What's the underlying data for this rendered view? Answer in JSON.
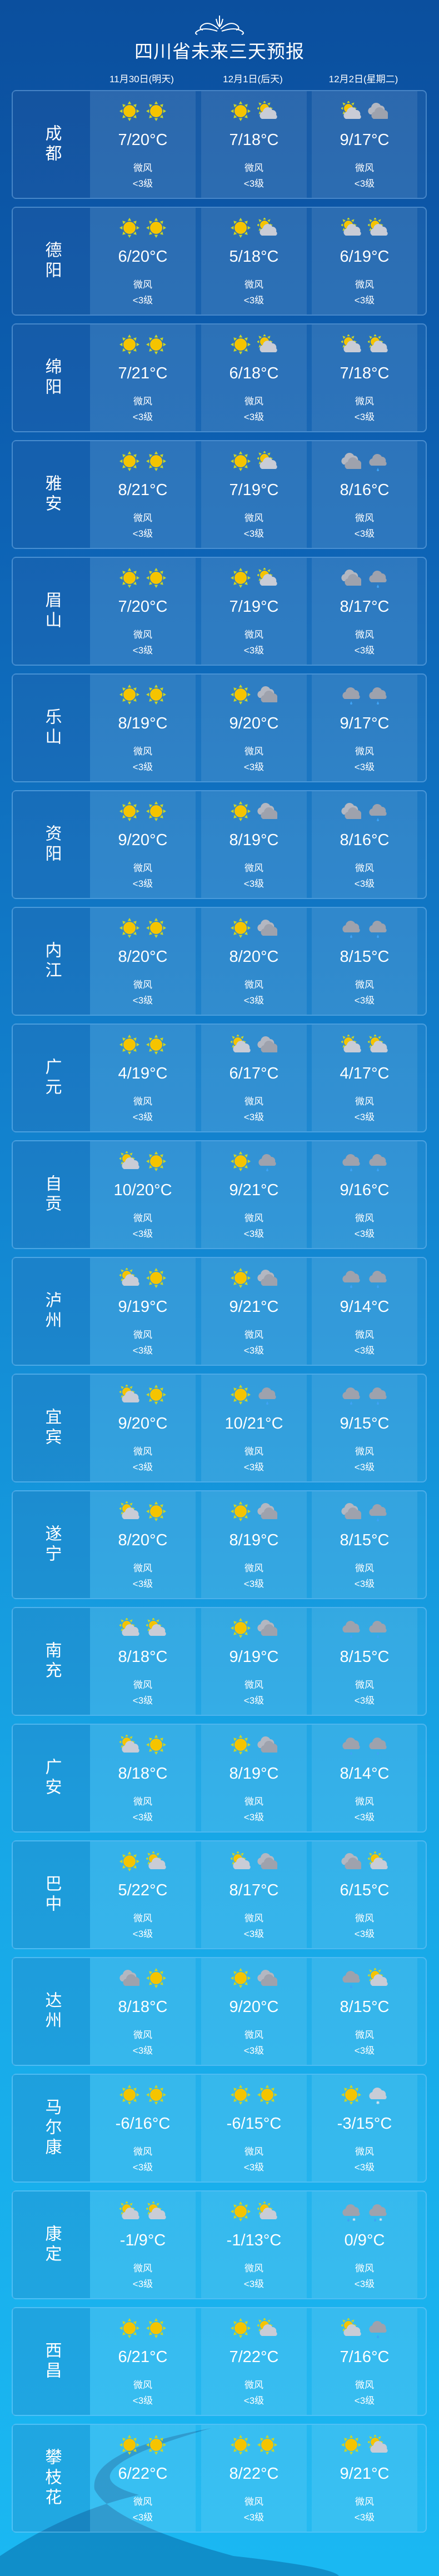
{
  "title": "四川省未来三天预报",
  "dates": [
    "11月30日(明天)",
    "12月1日(后天)",
    "12月2日(星期二)"
  ],
  "wind_label": "微风",
  "wind_level": "<3级",
  "colors": {
    "sun": "#f5c400",
    "cloud": "#c9ccd6",
    "dark_cloud": "#9ea2ad",
    "drop": "#3fa3f5"
  },
  "icon_legend": {
    "sun": "sun-icon",
    "partly": "sun-behind-cloud-icon",
    "overcast": "overcast-clouds-icon",
    "rain": "rain-cloud-icon",
    "snow": "snow-cloud-icon",
    "sleet": "sleet-cloud-icon"
  },
  "cities": [
    {
      "name": "成都",
      "days": [
        {
          "icons": [
            "sun",
            "sun"
          ],
          "temp": "7/20°C"
        },
        {
          "icons": [
            "sun",
            "partly"
          ],
          "temp": "7/18°C"
        },
        {
          "icons": [
            "partly",
            "overcast"
          ],
          "temp": "9/17°C"
        }
      ]
    },
    {
      "name": "德阳",
      "days": [
        {
          "icons": [
            "sun",
            "sun"
          ],
          "temp": "6/20°C"
        },
        {
          "icons": [
            "sun",
            "partly"
          ],
          "temp": "5/18°C"
        },
        {
          "icons": [
            "partly",
            "partly"
          ],
          "temp": "6/19°C"
        }
      ]
    },
    {
      "name": "绵阳",
      "days": [
        {
          "icons": [
            "sun",
            "sun"
          ],
          "temp": "7/21°C"
        },
        {
          "icons": [
            "sun",
            "partly"
          ],
          "temp": "6/18°C"
        },
        {
          "icons": [
            "partly",
            "partly"
          ],
          "temp": "7/18°C"
        }
      ]
    },
    {
      "name": "雅安",
      "days": [
        {
          "icons": [
            "sun",
            "sun"
          ],
          "temp": "8/21°C"
        },
        {
          "icons": [
            "sun",
            "partly"
          ],
          "temp": "7/19°C"
        },
        {
          "icons": [
            "overcast",
            "rain"
          ],
          "temp": "8/16°C"
        }
      ]
    },
    {
      "name": "眉山",
      "days": [
        {
          "icons": [
            "sun",
            "sun"
          ],
          "temp": "7/20°C"
        },
        {
          "icons": [
            "sun",
            "partly"
          ],
          "temp": "7/19°C"
        },
        {
          "icons": [
            "overcast",
            "rain"
          ],
          "temp": "8/17°C"
        }
      ]
    },
    {
      "name": "乐山",
      "days": [
        {
          "icons": [
            "sun",
            "sun"
          ],
          "temp": "8/19°C"
        },
        {
          "icons": [
            "sun",
            "overcast"
          ],
          "temp": "9/20°C"
        },
        {
          "icons": [
            "rain",
            "rain"
          ],
          "temp": "9/17°C"
        }
      ]
    },
    {
      "name": "资阳",
      "days": [
        {
          "icons": [
            "sun",
            "sun"
          ],
          "temp": "9/20°C"
        },
        {
          "icons": [
            "sun",
            "overcast"
          ],
          "temp": "8/19°C"
        },
        {
          "icons": [
            "overcast",
            "rain"
          ],
          "temp": "8/16°C"
        }
      ]
    },
    {
      "name": "内江",
      "days": [
        {
          "icons": [
            "sun",
            "sun"
          ],
          "temp": "8/20°C"
        },
        {
          "icons": [
            "sun",
            "overcast"
          ],
          "temp": "8/20°C"
        },
        {
          "icons": [
            "rain",
            "rain"
          ],
          "temp": "8/15°C"
        }
      ]
    },
    {
      "name": "广元",
      "days": [
        {
          "icons": [
            "sun",
            "sun"
          ],
          "temp": "4/19°C"
        },
        {
          "icons": [
            "partly",
            "overcast"
          ],
          "temp": "6/17°C"
        },
        {
          "icons": [
            "partly",
            "partly"
          ],
          "temp": "4/17°C"
        }
      ]
    },
    {
      "name": "自贡",
      "days": [
        {
          "icons": [
            "partly",
            "sun"
          ],
          "temp": "10/20°C"
        },
        {
          "icons": [
            "sun",
            "rain"
          ],
          "temp": "9/21°C"
        },
        {
          "icons": [
            "rain",
            "rain"
          ],
          "temp": "9/16°C"
        }
      ]
    },
    {
      "name": "泸州",
      "days": [
        {
          "icons": [
            "partly",
            "sun"
          ],
          "temp": "9/19°C"
        },
        {
          "icons": [
            "sun",
            "overcast"
          ],
          "temp": "9/21°C"
        },
        {
          "icons": [
            "rain",
            "rain"
          ],
          "temp": "9/14°C"
        }
      ]
    },
    {
      "name": "宜宾",
      "days": [
        {
          "icons": [
            "partly",
            "sun"
          ],
          "temp": "9/20°C"
        },
        {
          "icons": [
            "sun",
            "rain"
          ],
          "temp": "10/21°C"
        },
        {
          "icons": [
            "rain",
            "rain"
          ],
          "temp": "9/15°C"
        }
      ]
    },
    {
      "name": "遂宁",
      "days": [
        {
          "icons": [
            "partly",
            "sun"
          ],
          "temp": "8/20°C"
        },
        {
          "icons": [
            "sun",
            "overcast"
          ],
          "temp": "8/19°C"
        },
        {
          "icons": [
            "overcast",
            "rain"
          ],
          "temp": "8/15°C"
        }
      ]
    },
    {
      "name": "南充",
      "days": [
        {
          "icons": [
            "partly",
            "partly"
          ],
          "temp": "8/18°C"
        },
        {
          "icons": [
            "sun",
            "overcast"
          ],
          "temp": "9/19°C"
        },
        {
          "icons": [
            "rain",
            "rain"
          ],
          "temp": "8/15°C"
        }
      ]
    },
    {
      "name": "广安",
      "days": [
        {
          "icons": [
            "partly",
            "sun"
          ],
          "temp": "8/18°C"
        },
        {
          "icons": [
            "sun",
            "overcast"
          ],
          "temp": "8/19°C"
        },
        {
          "icons": [
            "rain",
            "rain"
          ],
          "temp": "8/14°C"
        }
      ]
    },
    {
      "name": "巴中",
      "days": [
        {
          "icons": [
            "sun",
            "partly"
          ],
          "temp": "5/22°C"
        },
        {
          "icons": [
            "partly",
            "overcast"
          ],
          "temp": "8/17°C"
        },
        {
          "icons": [
            "overcast",
            "partly"
          ],
          "temp": "6/15°C"
        }
      ]
    },
    {
      "name": "达州",
      "days": [
        {
          "icons": [
            "overcast",
            "sun"
          ],
          "temp": "8/18°C"
        },
        {
          "icons": [
            "sun",
            "overcast"
          ],
          "temp": "9/20°C"
        },
        {
          "icons": [
            "rain",
            "partly"
          ],
          "temp": "8/15°C"
        }
      ]
    },
    {
      "name": "马尔康",
      "days": [
        {
          "icons": [
            "sun",
            "sun"
          ],
          "temp": "-6/16°C"
        },
        {
          "icons": [
            "sun",
            "sun"
          ],
          "temp": "-6/15°C"
        },
        {
          "icons": [
            "sun",
            "snow"
          ],
          "temp": "-3/15°C"
        }
      ]
    },
    {
      "name": "康定",
      "days": [
        {
          "icons": [
            "partly",
            "partly"
          ],
          "temp": "-1/9°C"
        },
        {
          "icons": [
            "sun",
            "partly"
          ],
          "temp": "-1/13°C"
        },
        {
          "icons": [
            "sleet",
            "sleet"
          ],
          "temp": "0/9°C"
        }
      ]
    },
    {
      "name": "西昌",
      "days": [
        {
          "icons": [
            "sun",
            "sun"
          ],
          "temp": "6/21°C"
        },
        {
          "icons": [
            "sun",
            "partly"
          ],
          "temp": "7/22°C"
        },
        {
          "icons": [
            "partly",
            "rain"
          ],
          "temp": "7/16°C"
        }
      ]
    },
    {
      "name": "攀枝花",
      "days": [
        {
          "icons": [
            "sun",
            "sun"
          ],
          "temp": "6/22°C"
        },
        {
          "icons": [
            "sun",
            "sun"
          ],
          "temp": "8/22°C"
        },
        {
          "icons": [
            "sun",
            "partly"
          ],
          "temp": "9/21°C"
        }
      ]
    }
  ]
}
